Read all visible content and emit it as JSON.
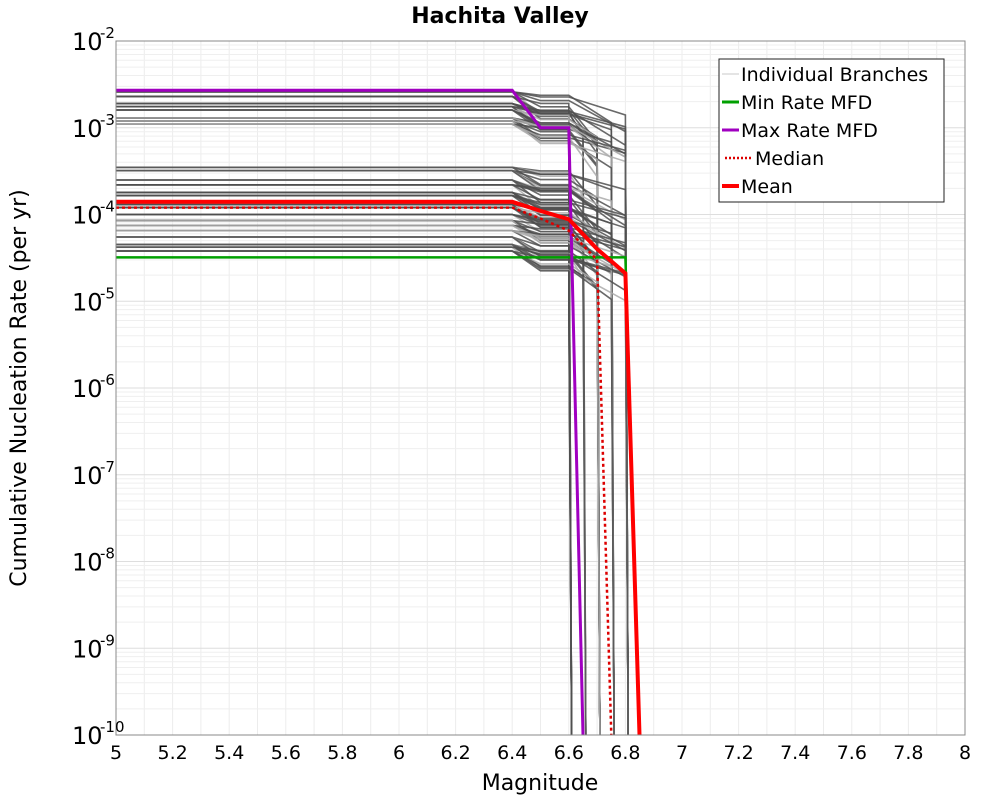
{
  "chart_data": {
    "type": "line",
    "title": "Hachita Valley",
    "xlabel": "Magnitude",
    "ylabel": "Cumulative Nucleation Rate (per yr)",
    "xlim": [
      5,
      8
    ],
    "ylim": [
      1e-10,
      0.01
    ],
    "yscale": "log",
    "grid": true,
    "legend_position": "top-right",
    "x_ticks": [
      "5",
      "5.2",
      "5.4",
      "5.6",
      "5.8",
      "6",
      "6.2",
      "6.4",
      "6.6",
      "6.8",
      "7",
      "7.2",
      "7.4",
      "7.6",
      "7.8",
      "8"
    ],
    "y_ticks": [
      {
        "base": "10",
        "exp": "-10",
        "value": 1e-10
      },
      {
        "base": "10",
        "exp": "-9",
        "value": 1e-09
      },
      {
        "base": "10",
        "exp": "-8",
        "value": 1e-08
      },
      {
        "base": "10",
        "exp": "-7",
        "value": 1e-07
      },
      {
        "base": "10",
        "exp": "-6",
        "value": 1e-06
      },
      {
        "base": "10",
        "exp": "-5",
        "value": 1e-05
      },
      {
        "base": "10",
        "exp": "-4",
        "value": 0.0001
      },
      {
        "base": "10",
        "exp": "-3",
        "value": 0.001
      },
      {
        "base": "10",
        "exp": "-2",
        "value": 0.01
      }
    ],
    "legend": [
      {
        "label": "Individual Branches",
        "color": "#c8c8c8",
        "style": "thin"
      },
      {
        "label": "Min Rate MFD",
        "color": "#00a000",
        "style": "solid"
      },
      {
        "label": "Max Rate MFD",
        "color": "#a000c0",
        "style": "solid"
      },
      {
        "label": "Median",
        "color": "#dd0000",
        "style": "dotted"
      },
      {
        "label": "Mean",
        "color": "#ff0000",
        "style": "thick"
      }
    ],
    "series": [
      {
        "name": "Min Rate MFD",
        "color": "#00a000",
        "width": 2.5,
        "dash": "",
        "x": [
          5,
          6.8,
          6.85
        ],
        "y": [
          3.2e-05,
          3.2e-05,
          1e-10
        ]
      },
      {
        "name": "Max Rate MFD",
        "color": "#a000c0",
        "width": 3,
        "dash": "",
        "x": [
          5,
          6.4,
          6.5,
          6.6,
          6.65
        ],
        "y": [
          0.0027,
          0.0027,
          0.001,
          0.001,
          1e-10
        ]
      },
      {
        "name": "Median",
        "color": "#dd0000",
        "width": 2.5,
        "dash": "3,3",
        "x": [
          5,
          6.4,
          6.5,
          6.6,
          6.7,
          6.75
        ],
        "y": [
          0.00012,
          0.00012,
          9e-05,
          6.5e-05,
          3e-05,
          1e-10
        ]
      },
      {
        "name": "Mean",
        "color": "#ff0000",
        "width": 4,
        "dash": "",
        "x": [
          5,
          6.4,
          6.5,
          6.6,
          6.7,
          6.8,
          6.85
        ],
        "y": [
          0.00014,
          0.00014,
          0.00011,
          8.8e-05,
          4e-05,
          2.1e-05,
          1e-10
        ]
      }
    ],
    "branches": {
      "color_dark": "#4f4f4f",
      "color_light": "#aaaaaa",
      "rates": [
        0.0026,
        0.0023,
        0.0019,
        0.00175,
        0.0016,
        0.0013,
        0.0012,
        0.0011,
        0.00035,
        0.00032,
        0.00025,
        0.00022,
        0.00018,
        0.000165,
        0.00013,
        0.00012,
        0.0001,
        8.5e-05,
        7.5e-05,
        6.5e-05,
        5.5e-05,
        4.5e-05,
        4.2e-05,
        3.8e-05
      ],
      "ends": [
        6.6,
        6.7,
        6.8,
        6.75,
        6.65,
        6.7,
        6.8,
        6.75
      ]
    }
  }
}
